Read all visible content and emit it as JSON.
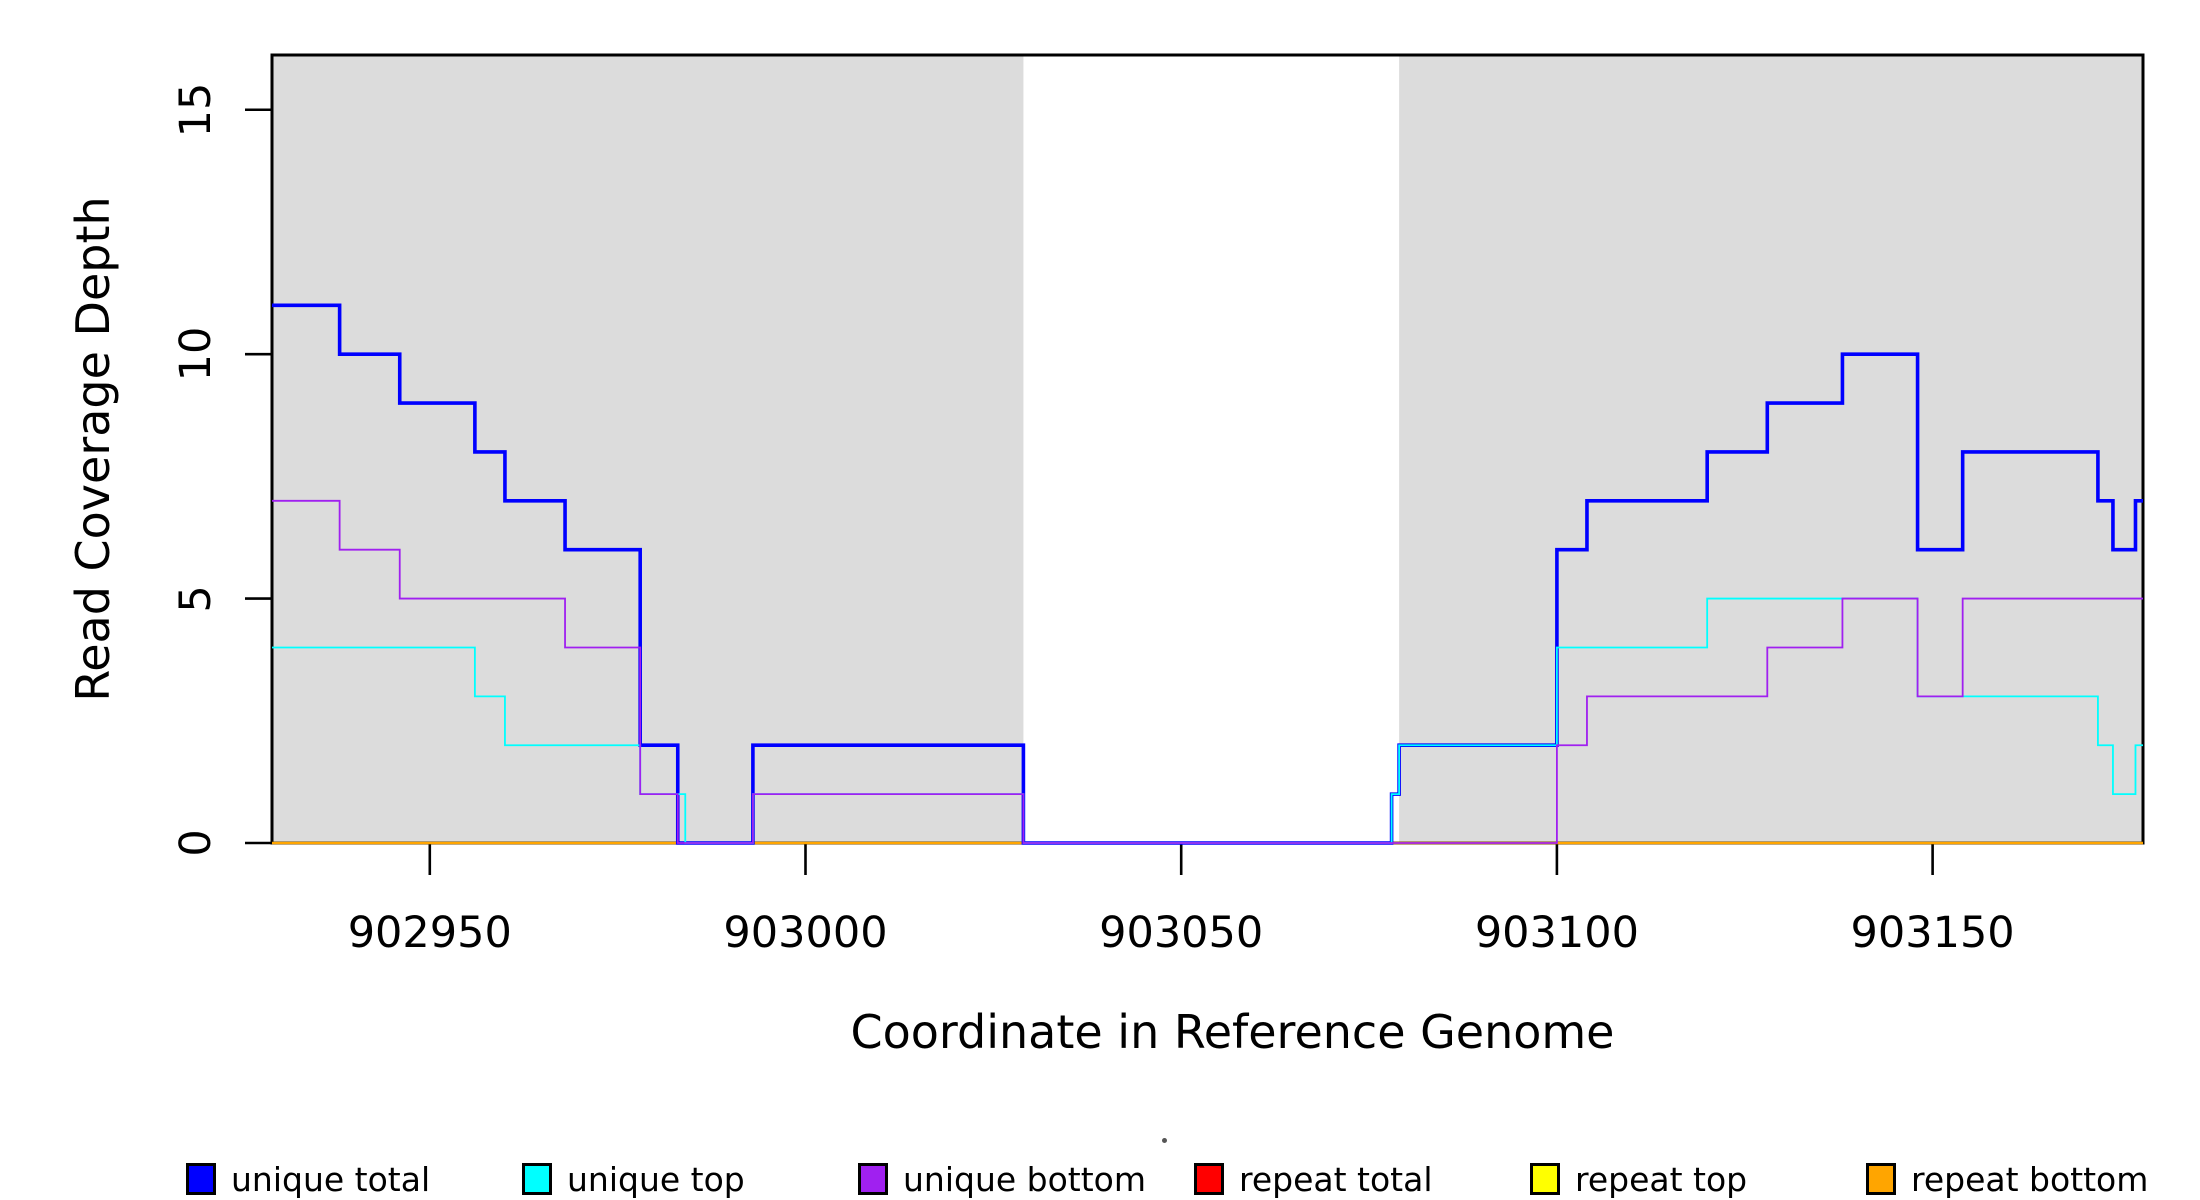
{
  "chart_data": {
    "type": "line",
    "subtype": "step",
    "title": "",
    "xlabel": "Coordinate in Reference Genome",
    "ylabel": "Read Coverage Depth",
    "xlim": [
      902929,
      903178
    ],
    "ylim": [
      0,
      16.12
    ],
    "grid": false,
    "background_color": "#FFFFFF",
    "plot_border_color": "#000000",
    "x_ticks": [
      {
        "value": 902950,
        "label": "902950"
      },
      {
        "value": 903000,
        "label": "903000"
      },
      {
        "value": 903050,
        "label": "903050"
      },
      {
        "value": 903100,
        "label": "903100"
      },
      {
        "value": 903150,
        "label": "903150"
      }
    ],
    "y_ticks": [
      {
        "value": 0,
        "label": "0"
      },
      {
        "value": 5,
        "label": "5"
      },
      {
        "value": 10,
        "label": "10"
      },
      {
        "value": 15,
        "label": "15"
      }
    ],
    "shaded_regions": [
      {
        "x1": 902929,
        "x2": 903029,
        "color": "#DCDCDC"
      },
      {
        "x1": 903079,
        "x2": 903178,
        "color": "#DCDCDC"
      }
    ],
    "series": [
      {
        "name": "repeat total",
        "color": "#FF0000",
        "line_width": 2,
        "change_points": [
          [
            902929,
            0
          ],
          [
            903178,
            0
          ]
        ]
      },
      {
        "name": "repeat top",
        "color": "#FFFF00",
        "line_width": 2,
        "change_points": [
          [
            902929,
            0
          ],
          [
            903178,
            0
          ]
        ]
      },
      {
        "name": "repeat bottom",
        "color": "#FFA500",
        "line_width": 2.4,
        "change_points": [
          [
            902929,
            0
          ],
          [
            903178,
            0
          ]
        ]
      },
      {
        "name": "unique total",
        "color": "#0000FF",
        "line_width": 3.6,
        "change_points": [
          [
            902929,
            11
          ],
          [
            902938,
            10
          ],
          [
            902946,
            9
          ],
          [
            902956,
            8
          ],
          [
            902960,
            7
          ],
          [
            902968,
            6
          ],
          [
            902978,
            2
          ],
          [
            902983,
            0
          ],
          [
            902993,
            2
          ],
          [
            903029,
            0
          ],
          [
            903078,
            1
          ],
          [
            903079,
            2
          ],
          [
            903100,
            6
          ],
          [
            903104,
            7
          ],
          [
            903120,
            8
          ],
          [
            903128,
            9
          ],
          [
            903138,
            10
          ],
          [
            903148,
            6
          ],
          [
            903154,
            8
          ],
          [
            903172,
            7
          ],
          [
            903174,
            6
          ],
          [
            903177,
            7
          ],
          [
            903178,
            7
          ]
        ]
      },
      {
        "name": "unique top",
        "color": "#00FFFF",
        "line_width": 1.8,
        "change_points": [
          [
            902929,
            4
          ],
          [
            902956,
            3
          ],
          [
            902960,
            2
          ],
          [
            902978,
            1
          ],
          [
            902984,
            0
          ],
          [
            902993,
            1
          ],
          [
            903029,
            0
          ],
          [
            903078,
            1
          ],
          [
            903079,
            2
          ],
          [
            903100,
            4
          ],
          [
            903120,
            5
          ],
          [
            903148,
            3
          ],
          [
            903172,
            2
          ],
          [
            903174,
            1
          ],
          [
            903177,
            2
          ],
          [
            903178,
            2
          ]
        ]
      },
      {
        "name": "unique bottom",
        "color": "#A020F0",
        "line_width": 1.8,
        "change_points": [
          [
            902929,
            7
          ],
          [
            902938,
            6
          ],
          [
            902946,
            5
          ],
          [
            902968,
            4
          ],
          [
            902978,
            1
          ],
          [
            902983,
            0
          ],
          [
            902993,
            1
          ],
          [
            903029,
            0
          ],
          [
            903100,
            2
          ],
          [
            903104,
            3
          ],
          [
            903128,
            4
          ],
          [
            903138,
            5
          ],
          [
            903148,
            3
          ],
          [
            903154,
            5
          ],
          [
            903178,
            5
          ]
        ]
      }
    ],
    "legend": {
      "position": "bottom",
      "items": [
        {
          "label": "unique total",
          "color": "#0000FF"
        },
        {
          "label": "unique top",
          "color": "#00FFFF"
        },
        {
          "label": "unique bottom",
          "color": "#A020F0"
        },
        {
          "label": "repeat total",
          "color": "#FF0000"
        },
        {
          "label": "repeat top",
          "color": "#FFFF00"
        },
        {
          "label": "repeat bottom",
          "color": "#FFA500"
        }
      ]
    }
  }
}
